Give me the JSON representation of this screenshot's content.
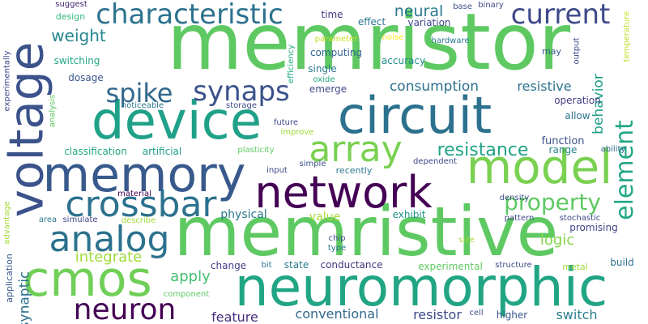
{
  "words": [
    {
      "text": "memristor",
      "color": "#5ec962"
    },
    {
      "text": "memristive",
      "color": "#5ec962"
    },
    {
      "text": "neuromorphic",
      "color": "#21a585"
    },
    {
      "text": "circuit",
      "color": "#2c718e"
    },
    {
      "text": "device",
      "color": "#1fa188"
    },
    {
      "text": "voltage",
      "color": "#3b528b"
    },
    {
      "text": "memory",
      "color": "#38598c"
    },
    {
      "text": "network",
      "color": "#440154"
    },
    {
      "text": "model",
      "color": "#7ad151"
    },
    {
      "text": "cmos",
      "color": "#70cf57"
    },
    {
      "text": "array",
      "color": "#7ad151"
    },
    {
      "text": "crossbar",
      "color": "#2d718e"
    },
    {
      "text": "analog",
      "color": "#2c728e"
    },
    {
      "text": "characteristic",
      "color": "#2c728e"
    },
    {
      "text": "synaps",
      "color": "#3b528b"
    },
    {
      "text": "spike",
      "color": "#31688e"
    },
    {
      "text": "current",
      "color": "#3e4989"
    },
    {
      "text": "element",
      "color": "#22a785"
    },
    {
      "text": "neuron",
      "color": "#440154"
    },
    {
      "text": "resistance",
      "color": "#20a386"
    },
    {
      "text": "property",
      "color": "#5ec962"
    },
    {
      "text": "weight",
      "color": "#25858e"
    },
    {
      "text": "neural",
      "color": "#2a788e"
    },
    {
      "text": "consumption",
      "color": "#2d708e"
    },
    {
      "text": "behavior",
      "color": "#1f9f88"
    },
    {
      "text": "resistive",
      "color": "#2c728e"
    },
    {
      "text": "logic",
      "color": "#86d549"
    },
    {
      "text": "integrate",
      "color": "#a0da39"
    },
    {
      "text": "apply",
      "color": "#44bf70"
    },
    {
      "text": "synaptic",
      "color": "#2c728e"
    },
    {
      "text": "feature",
      "color": "#472d7b"
    },
    {
      "text": "conventional",
      "color": "#31688e"
    },
    {
      "text": "resistor",
      "color": "#3e4989"
    },
    {
      "text": "switch",
      "color": "#27808e"
    },
    {
      "text": "physical",
      "color": "#2a788e"
    },
    {
      "text": "value",
      "color": "#a0da39"
    },
    {
      "text": "computing",
      "color": "#32658e"
    },
    {
      "text": "accuracy",
      "color": "#228c8d"
    },
    {
      "text": "variation",
      "color": "#3e4989"
    },
    {
      "text": "effect",
      "color": "#2a788e"
    },
    {
      "text": "time",
      "color": "#453781"
    },
    {
      "text": "function",
      "color": "#3b528b"
    },
    {
      "text": "range",
      "color": "#25848e"
    },
    {
      "text": "allow",
      "color": "#2c728e"
    },
    {
      "text": "operation",
      "color": "#433e85"
    },
    {
      "text": "exhibit",
      "color": "#20928c"
    },
    {
      "text": "promising",
      "color": "#404688"
    },
    {
      "text": "build",
      "color": "#2c728e"
    },
    {
      "text": "experimental",
      "color": "#5ec962"
    },
    {
      "text": "conductance",
      "color": "#46337f"
    },
    {
      "text": "state",
      "color": "#2a788e"
    },
    {
      "text": "bit",
      "color": "#2a788e"
    },
    {
      "text": "change",
      "color": "#433e85"
    },
    {
      "text": "classification",
      "color": "#22a884"
    },
    {
      "text": "artificial",
      "color": "#1fa088"
    },
    {
      "text": "switching",
      "color": "#22a884"
    },
    {
      "text": "dosage",
      "color": "#39568c"
    },
    {
      "text": "design",
      "color": "#32b67a"
    },
    {
      "text": "suggest",
      "color": "#482475"
    },
    {
      "text": "hardware",
      "color": "#2a788e"
    },
    {
      "text": "binary",
      "color": "#3e4989"
    },
    {
      "text": "base",
      "color": "#3b528b"
    },
    {
      "text": "parameter",
      "color": "#c8e020"
    },
    {
      "text": "noise",
      "color": "#fde725"
    },
    {
      "text": "may",
      "color": "#39568c"
    },
    {
      "text": "output",
      "color": "#3e4989"
    },
    {
      "text": "temperature",
      "color": "#bddf26"
    },
    {
      "text": "efficiency",
      "color": "#22a884"
    },
    {
      "text": "single",
      "color": "#2a788e"
    },
    {
      "text": "oxide",
      "color": "#22a884"
    },
    {
      "text": "emerge",
      "color": "#3e4989"
    },
    {
      "text": "noticeable",
      "color": "#2a788e"
    },
    {
      "text": "storage",
      "color": "#3e4989"
    },
    {
      "text": "future",
      "color": "#3e4989"
    },
    {
      "text": "improve",
      "color": "#a0da39"
    },
    {
      "text": "plasticity",
      "color": "#5ec962"
    },
    {
      "text": "input",
      "color": "#3e4989"
    },
    {
      "text": "simple",
      "color": "#3b528b"
    },
    {
      "text": "recently",
      "color": "#2a788e"
    },
    {
      "text": "dependent",
      "color": "#3e4989"
    },
    {
      "text": "ability",
      "color": "#31688e"
    },
    {
      "text": "density",
      "color": "#3b528b"
    },
    {
      "text": "pattern",
      "color": "#3e4989"
    },
    {
      "text": "stochastic",
      "color": "#3e4989"
    },
    {
      "text": "material",
      "color": "#440154"
    },
    {
      "text": "area",
      "color": "#2a788e"
    },
    {
      "text": "simulate",
      "color": "#3e4989"
    },
    {
      "text": "describe",
      "color": "#a0da39"
    },
    {
      "text": "component",
      "color": "#5ec962"
    },
    {
      "text": "chip",
      "color": "#3e4989"
    },
    {
      "text": "type",
      "color": "#2a788e"
    },
    {
      "text": "size",
      "color": "#a0da39"
    },
    {
      "text": "structure",
      "color": "#3e4989"
    },
    {
      "text": "metal",
      "color": "#a0da39"
    },
    {
      "text": "higher",
      "color": "#39568c"
    },
    {
      "text": "cell",
      "color": "#3b528b"
    },
    {
      "text": "analysis",
      "color": "#5ec962"
    },
    {
      "text": "experimentally",
      "color": "#3e4989"
    },
    {
      "text": "advantage",
      "color": "#a0da39"
    },
    {
      "text": "application",
      "color": "#39568c"
    }
  ]
}
